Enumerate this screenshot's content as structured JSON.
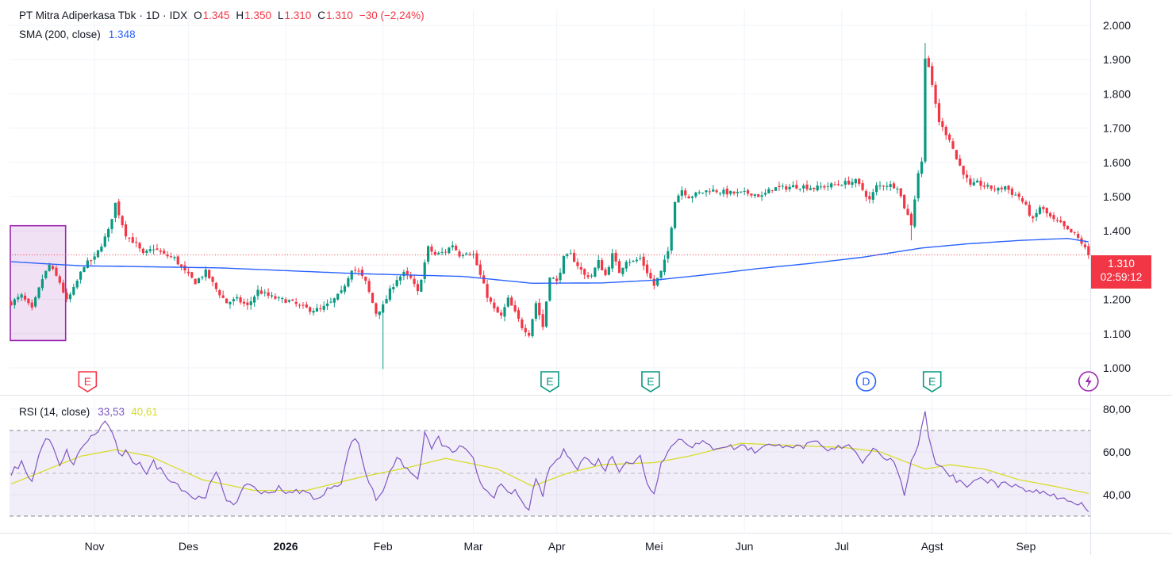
{
  "header": {
    "symbol": "PT Mitra Adiperkasa Tbk",
    "interval": "1D",
    "exchange": "IDX",
    "o_label": "O",
    "open": "1.345",
    "h_label": "H",
    "high": "1.350",
    "l_label": "L",
    "low": "1.310",
    "c_label": "C",
    "close": "1.310",
    "change": "−30 (−2,24%)"
  },
  "sma_legend": {
    "label": "SMA (200, close)",
    "value": "1.348"
  },
  "rsi_legend": {
    "label": "RSI (14, close)",
    "value": "33,53",
    "ma_value": "40,61"
  },
  "price_badge": {
    "price": "1.310",
    "countdown": "02:59:12"
  },
  "colors": {
    "up": "#089981",
    "down": "#f23645",
    "sma": "#2962ff",
    "rsi": "#7e57c2",
    "rsi_ma": "#d6dd2a",
    "highlight": "#9c27b0"
  },
  "chart_data": {
    "type": "candlestick",
    "price_axis": {
      "ticks": [
        "2.000",
        "1.900",
        "1.800",
        "1.700",
        "1.600",
        "1.500",
        "1.400",
        "1.300",
        "1.200",
        "1.100",
        "1.000"
      ],
      "range": [
        970,
        2030
      ]
    },
    "rsi_axis": {
      "ticks": [
        "80,00",
        "60,00",
        "40,00"
      ],
      "range": [
        27,
        82
      ],
      "bands": [
        30,
        50,
        70
      ]
    },
    "time_axis": [
      "Nov",
      "Des",
      "2026",
      "Feb",
      "Mar",
      "Apr",
      "Mei",
      "Jun",
      "Jul",
      "Agst",
      "Sep"
    ],
    "time_axis_index": [
      24,
      51,
      79,
      107,
      133,
      157,
      185,
      211,
      239,
      265,
      292
    ],
    "events": [
      {
        "type": "E",
        "index": 22,
        "color": "red"
      },
      {
        "type": "E",
        "index": 155,
        "color": "green"
      },
      {
        "type": "E",
        "index": 184,
        "color": "green"
      },
      {
        "type": "D",
        "index": 246,
        "color": "blue"
      },
      {
        "type": "E",
        "index": 265,
        "color": "green"
      },
      {
        "type": "flash",
        "index": 310,
        "color": "purple"
      }
    ],
    "highlight_range": {
      "start_index": 0,
      "end_index": 15,
      "low": 1060,
      "high": 1395
    },
    "anchors": [
      [
        0,
        1170
      ],
      [
        3,
        1190
      ],
      [
        6,
        1150
      ],
      [
        9,
        1240
      ],
      [
        11,
        1280
      ],
      [
        14,
        1230
      ],
      [
        16,
        1175
      ],
      [
        18,
        1210
      ],
      [
        21,
        1280
      ],
      [
        24,
        1300
      ],
      [
        28,
        1380
      ],
      [
        30,
        1460
      ],
      [
        33,
        1370
      ],
      [
        36,
        1340
      ],
      [
        38,
        1310
      ],
      [
        41,
        1330
      ],
      [
        44,
        1310
      ],
      [
        47,
        1300
      ],
      [
        50,
        1260
      ],
      [
        53,
        1230
      ],
      [
        56,
        1260
      ],
      [
        59,
        1210
      ],
      [
        62,
        1170
      ],
      [
        65,
        1180
      ],
      [
        68,
        1160
      ],
      [
        71,
        1205
      ],
      [
        74,
        1190
      ],
      [
        77,
        1180
      ],
      [
        80,
        1175
      ],
      [
        83,
        1160
      ],
      [
        86,
        1150
      ],
      [
        89,
        1150
      ],
      [
        92,
        1170
      ],
      [
        95,
        1200
      ],
      [
        98,
        1270
      ],
      [
        100,
        1260
      ],
      [
        102,
        1230
      ],
      [
        105,
        1140
      ],
      [
        107,
        1160
      ],
      [
        109,
        1205
      ],
      [
        111,
        1240
      ],
      [
        113,
        1255
      ],
      [
        115,
        1240
      ],
      [
        117,
        1200
      ],
      [
        120,
        1330
      ],
      [
        122,
        1310
      ],
      [
        125,
        1320
      ],
      [
        127,
        1340
      ],
      [
        129,
        1310
      ],
      [
        131,
        1320
      ],
      [
        133,
        1310
      ],
      [
        135,
        1250
      ],
      [
        137,
        1190
      ],
      [
        139,
        1150
      ],
      [
        141,
        1130
      ],
      [
        143,
        1180
      ],
      [
        145,
        1140
      ],
      [
        147,
        1100
      ],
      [
        149,
        1080
      ],
      [
        151,
        1170
      ],
      [
        153,
        1100
      ],
      [
        155,
        1250
      ],
      [
        157,
        1230
      ],
      [
        159,
        1300
      ],
      [
        161,
        1310
      ],
      [
        163,
        1280
      ],
      [
        165,
        1250
      ],
      [
        167,
        1250
      ],
      [
        169,
        1290
      ],
      [
        171,
        1250
      ],
      [
        173,
        1310
      ],
      [
        175,
        1260
      ],
      [
        177,
        1295
      ],
      [
        179,
        1290
      ],
      [
        181,
        1300
      ],
      [
        183,
        1260
      ],
      [
        185,
        1220
      ],
      [
        187,
        1260
      ],
      [
        189,
        1320
      ],
      [
        191,
        1470
      ],
      [
        193,
        1500
      ],
      [
        195,
        1480
      ],
      [
        198,
        1490
      ],
      [
        201,
        1500
      ],
      [
        204,
        1495
      ],
      [
        207,
        1490
      ],
      [
        210,
        1490
      ],
      [
        213,
        1490
      ],
      [
        216,
        1480
      ],
      [
        219,
        1505
      ],
      [
        222,
        1505
      ],
      [
        225,
        1510
      ],
      [
        228,
        1510
      ],
      [
        231,
        1505
      ],
      [
        234,
        1510
      ],
      [
        237,
        1515
      ],
      [
        240,
        1520
      ],
      [
        243,
        1525
      ],
      [
        245,
        1500
      ],
      [
        247,
        1470
      ],
      [
        249,
        1510
      ],
      [
        252,
        1515
      ],
      [
        255,
        1510
      ],
      [
        257,
        1450
      ],
      [
        259,
        1400
      ],
      [
        261,
        1550
      ],
      [
        262,
        1580
      ],
      [
        263,
        1890
      ],
      [
        264,
        1860
      ],
      [
        265,
        1800
      ],
      [
        266,
        1750
      ],
      [
        267,
        1700
      ],
      [
        268,
        1680
      ],
      [
        270,
        1650
      ],
      [
        272,
        1590
      ],
      [
        274,
        1550
      ],
      [
        276,
        1510
      ],
      [
        278,
        1520
      ],
      [
        280,
        1510
      ],
      [
        282,
        1505
      ],
      [
        284,
        1500
      ],
      [
        286,
        1510
      ],
      [
        288,
        1490
      ],
      [
        290,
        1480
      ],
      [
        292,
        1450
      ],
      [
        294,
        1410
      ],
      [
        296,
        1450
      ],
      [
        298,
        1430
      ],
      [
        300,
        1410
      ],
      [
        302,
        1400
      ],
      [
        304,
        1380
      ],
      [
        306,
        1370
      ],
      [
        308,
        1345
      ],
      [
        310,
        1310
      ]
    ],
    "sma_anchors": [
      [
        0,
        1290
      ],
      [
        20,
        1278
      ],
      [
        60,
        1272
      ],
      [
        100,
        1255
      ],
      [
        130,
        1247
      ],
      [
        150,
        1227
      ],
      [
        170,
        1228
      ],
      [
        185,
        1236
      ],
      [
        200,
        1252
      ],
      [
        215,
        1270
      ],
      [
        230,
        1285
      ],
      [
        245,
        1303
      ],
      [
        262,
        1330
      ],
      [
        275,
        1342
      ],
      [
        290,
        1352
      ],
      [
        304,
        1358
      ],
      [
        310,
        1348
      ]
    ],
    "rsi_anchors": [
      [
        0,
        50
      ],
      [
        3,
        55
      ],
      [
        6,
        46
      ],
      [
        9,
        64
      ],
      [
        11,
        66
      ],
      [
        14,
        53
      ],
      [
        16,
        60
      ],
      [
        18,
        54
      ],
      [
        21,
        64
      ],
      [
        24,
        68
      ],
      [
        27,
        74
      ],
      [
        29,
        70
      ],
      [
        31,
        58
      ],
      [
        33,
        60
      ],
      [
        35,
        54
      ],
      [
        37,
        56
      ],
      [
        39,
        50
      ],
      [
        41,
        55
      ],
      [
        44,
        50
      ],
      [
        47,
        46
      ],
      [
        50,
        42
      ],
      [
        53,
        38
      ],
      [
        56,
        40
      ],
      [
        59,
        50
      ],
      [
        62,
        38
      ],
      [
        65,
        36
      ],
      [
        68,
        46
      ],
      [
        71,
        42
      ],
      [
        74,
        40
      ],
      [
        77,
        44
      ],
      [
        80,
        40
      ],
      [
        83,
        42
      ],
      [
        86,
        40
      ],
      [
        89,
        38
      ],
      [
        92,
        44
      ],
      [
        95,
        46
      ],
      [
        98,
        66
      ],
      [
        100,
        64
      ],
      [
        102,
        50
      ],
      [
        105,
        38
      ],
      [
        107,
        42
      ],
      [
        109,
        52
      ],
      [
        111,
        56
      ],
      [
        113,
        54
      ],
      [
        115,
        50
      ],
      [
        117,
        47
      ],
      [
        119,
        68
      ],
      [
        121,
        62
      ],
      [
        123,
        66
      ],
      [
        125,
        62
      ],
      [
        127,
        60
      ],
      [
        129,
        62
      ],
      [
        131,
        60
      ],
      [
        133,
        56
      ],
      [
        135,
        46
      ],
      [
        137,
        42
      ],
      [
        139,
        40
      ],
      [
        141,
        44
      ],
      [
        143,
        40
      ],
      [
        145,
        42
      ],
      [
        147,
        36
      ],
      [
        149,
        34
      ],
      [
        151,
        46
      ],
      [
        153,
        40
      ],
      [
        155,
        53
      ],
      [
        157,
        56
      ],
      [
        159,
        60
      ],
      [
        161,
        58
      ],
      [
        163,
        52
      ],
      [
        165,
        58
      ],
      [
        167,
        54
      ],
      [
        169,
        56
      ],
      [
        171,
        52
      ],
      [
        173,
        58
      ],
      [
        175,
        52
      ],
      [
        177,
        56
      ],
      [
        179,
        54
      ],
      [
        181,
        58
      ],
      [
        183,
        46
      ],
      [
        185,
        40
      ],
      [
        187,
        56
      ],
      [
        189,
        60
      ],
      [
        191,
        65
      ],
      [
        193,
        66
      ],
      [
        196,
        63
      ],
      [
        199,
        64
      ],
      [
        202,
        62
      ],
      [
        205,
        63
      ],
      [
        208,
        62
      ],
      [
        211,
        63
      ],
      [
        214,
        60
      ],
      [
        217,
        64
      ],
      [
        220,
        62
      ],
      [
        223,
        64
      ],
      [
        226,
        62
      ],
      [
        229,
        63
      ],
      [
        232,
        64
      ],
      [
        235,
        60
      ],
      [
        238,
        62
      ],
      [
        241,
        64
      ],
      [
        243,
        60
      ],
      [
        245,
        56
      ],
      [
        247,
        60
      ],
      [
        249,
        62
      ],
      [
        251,
        56
      ],
      [
        253,
        58
      ],
      [
        255,
        50
      ],
      [
        257,
        40
      ],
      [
        259,
        56
      ],
      [
        261,
        64
      ],
      [
        263,
        79
      ],
      [
        264,
        68
      ],
      [
        266,
        55
      ],
      [
        268,
        52
      ],
      [
        270,
        50
      ],
      [
        272,
        47
      ],
      [
        274,
        46
      ],
      [
        276,
        44
      ],
      [
        278,
        48
      ],
      [
        280,
        47
      ],
      [
        282,
        46
      ],
      [
        284,
        44
      ],
      [
        286,
        46
      ],
      [
        288,
        43
      ],
      [
        290,
        45
      ],
      [
        292,
        40
      ],
      [
        294,
        42
      ],
      [
        296,
        40
      ],
      [
        298,
        41
      ],
      [
        300,
        39
      ],
      [
        302,
        38
      ],
      [
        304,
        36
      ],
      [
        306,
        37
      ],
      [
        308,
        35
      ],
      [
        310,
        33.5
      ]
    ],
    "rsi_ma_anchors": [
      [
        0,
        45
      ],
      [
        20,
        58
      ],
      [
        30,
        61
      ],
      [
        40,
        58
      ],
      [
        55,
        47
      ],
      [
        70,
        42
      ],
      [
        85,
        42
      ],
      [
        100,
        48
      ],
      [
        115,
        53
      ],
      [
        125,
        57
      ],
      [
        140,
        52
      ],
      [
        150,
        44
      ],
      [
        160,
        50
      ],
      [
        170,
        54
      ],
      [
        185,
        55
      ],
      [
        195,
        58
      ],
      [
        210,
        64
      ],
      [
        225,
        63
      ],
      [
        240,
        62
      ],
      [
        250,
        60
      ],
      [
        258,
        55
      ],
      [
        263,
        52
      ],
      [
        270,
        54
      ],
      [
        280,
        52
      ],
      [
        290,
        47
      ],
      [
        300,
        44
      ],
      [
        310,
        40.6
      ]
    ]
  }
}
